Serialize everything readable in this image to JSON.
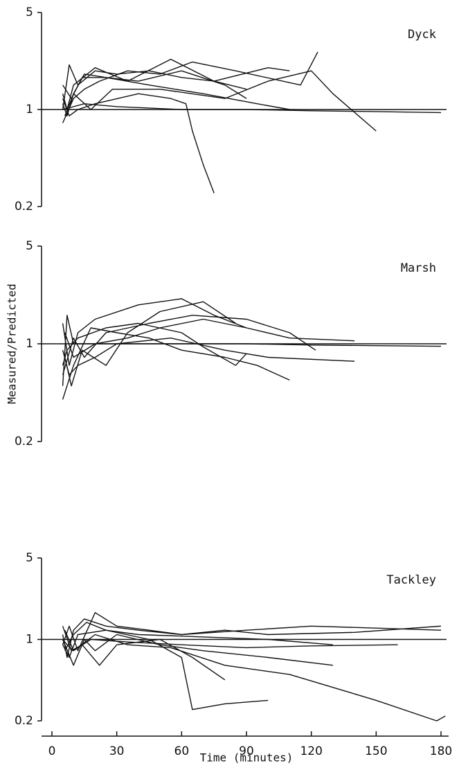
{
  "chart_data": [
    {
      "type": "line",
      "annotation": "Dyck",
      "log_y": true,
      "ylim": [
        0.2,
        5
      ],
      "yticks": [
        0.2,
        1,
        5
      ],
      "xlim": [
        0,
        180
      ],
      "hline": 1,
      "color": "#111111",
      "series": [
        {
          "x": [
            5,
            7,
            10,
            15,
            25,
            40,
            60,
            80,
            90
          ],
          "values": [
            1.1,
            0.9,
            1.3,
            1.8,
            1.7,
            1.6,
            1.9,
            1.5,
            1.2
          ]
        },
        {
          "x": [
            5,
            8,
            12,
            20,
            30,
            45,
            60,
            75,
            100,
            110
          ],
          "values": [
            1,
            2.1,
            1.5,
            1.9,
            1.8,
            1.9,
            1.7,
            1.6,
            2.0,
            1.9
          ]
        },
        {
          "x": [
            5,
            10,
            15,
            22,
            35,
            50,
            65,
            85,
            115,
            123
          ],
          "values": [
            0.8,
            1.2,
            1.4,
            1.6,
            1.9,
            1.8,
            2.2,
            1.9,
            1.5,
            2.6
          ]
        },
        {
          "x": [
            5,
            8,
            12,
            20,
            40,
            55,
            62,
            65,
            70,
            75
          ],
          "values": [
            1.2,
            0.9,
            1.0,
            1.1,
            1.3,
            1.2,
            1.1,
            0.7,
            0.4,
            0.25
          ]
        },
        {
          "x": [
            5,
            9,
            14,
            25,
            45,
            70,
            95,
            110
          ],
          "values": [
            1.5,
            1.2,
            1.7,
            1.7,
            1.5,
            1.3,
            1.1,
            1.0
          ]
        },
        {
          "x": [
            6,
            10,
            18,
            28,
            50,
            80,
            100,
            120,
            130,
            150
          ],
          "values": [
            0.9,
            1.3,
            1.0,
            1.4,
            1.4,
            1.2,
            1.6,
            1.9,
            1.3,
            0.7
          ]
        },
        {
          "x": [
            5,
            15,
            30,
            60,
            90,
            120,
            140,
            180
          ],
          "values": [
            1.0,
            1.1,
            1.05,
            1.0,
            1.0,
            0.98,
            0.97,
            0.95
          ]
        },
        {
          "x": [
            5,
            7,
            10,
            20,
            35,
            55,
            75,
            90
          ],
          "values": [
            1.3,
            1.0,
            1.5,
            2.0,
            1.6,
            2.3,
            1.6,
            1.4
          ]
        }
      ]
    },
    {
      "type": "line",
      "annotation": "Marsh",
      "ylabel": "Measured/Predicted",
      "log_y": true,
      "ylim": [
        0.2,
        5
      ],
      "yticks": [
        0.2,
        1,
        5
      ],
      "xlim": [
        0,
        180
      ],
      "hline": 1,
      "color": "#111111",
      "series": [
        {
          "x": [
            5,
            7,
            10,
            20,
            40,
            60,
            90,
            120,
            150,
            180
          ],
          "values": [
            0.5,
            1.6,
            1.0,
            1.0,
            1.0,
            1.0,
            1.0,
            0.98,
            0.97,
            0.96
          ]
        },
        {
          "x": [
            5,
            8,
            12,
            20,
            40,
            60,
            75,
            90
          ],
          "values": [
            1.4,
            0.7,
            1.2,
            1.5,
            1.9,
            2.1,
            1.6,
            1.3
          ]
        },
        {
          "x": [
            5,
            10,
            15,
            25,
            45,
            65,
            90,
            110,
            122
          ],
          "values": [
            0.6,
            1.1,
            0.8,
            1.2,
            1.4,
            1.6,
            1.5,
            1.2,
            0.9
          ]
        },
        {
          "x": [
            6,
            9,
            14,
            25,
            35,
            50,
            70,
            85
          ],
          "values": [
            0.8,
            0.5,
            0.9,
            0.7,
            1.2,
            1.7,
            2.0,
            1.4
          ]
        },
        {
          "x": [
            5,
            8,
            12,
            20,
            30,
            55,
            80,
            100,
            140
          ],
          "values": [
            0.9,
            0.6,
            0.7,
            0.8,
            1.0,
            1.1,
            0.9,
            0.8,
            0.75
          ]
        },
        {
          "x": [
            5,
            10,
            18,
            30,
            45,
            60,
            80,
            95,
            110
          ],
          "values": [
            0.4,
            0.7,
            1.3,
            1.2,
            1.1,
            0.9,
            0.8,
            0.7,
            0.55
          ]
        },
        {
          "x": [
            5,
            7,
            12,
            25,
            40,
            60,
            70,
            85,
            90
          ],
          "values": [
            0.7,
            0.9,
            1.1,
            1.3,
            1.4,
            1.2,
            0.95,
            0.7,
            0.85
          ]
        },
        {
          "x": [
            6,
            10,
            20,
            35,
            50,
            70,
            90,
            110,
            140
          ],
          "values": [
            1.2,
            0.8,
            1.0,
            1.1,
            1.3,
            1.5,
            1.3,
            1.1,
            1.05
          ]
        }
      ]
    },
    {
      "type": "line",
      "annotation": "Tackley",
      "xlabel": "Time (minutes)",
      "log_y": true,
      "ylim": [
        0.2,
        5
      ],
      "yticks": [
        0.2,
        1,
        5
      ],
      "xlim": [
        0,
        180
      ],
      "xticks": [
        0,
        30,
        60,
        90,
        120,
        150,
        180
      ],
      "hline": 1,
      "color": "#111111",
      "series": [
        {
          "x": [
            5,
            7,
            10,
            15,
            25,
            40,
            60,
            90,
            120,
            150,
            180
          ],
          "values": [
            1.1,
            0.7,
            1.2,
            1.5,
            1.3,
            1.2,
            1.1,
            1.2,
            1.3,
            1.25,
            1.2
          ]
        },
        {
          "x": [
            5,
            8,
            12,
            20,
            30,
            45,
            60,
            80,
            100,
            140,
            180
          ],
          "values": [
            0.9,
            1.3,
            0.8,
            1.7,
            1.3,
            1.2,
            1.1,
            1.2,
            1.1,
            1.15,
            1.3
          ]
        },
        {
          "x": [
            5,
            10,
            15,
            20,
            30,
            50,
            70,
            100,
            130
          ],
          "values": [
            1.0,
            0.6,
            1.0,
            0.8,
            1.1,
            0.9,
            0.8,
            0.7,
            0.6
          ]
        },
        {
          "x": [
            6,
            10,
            20,
            35,
            55,
            80,
            110,
            150,
            178,
            182
          ],
          "values": [
            1.2,
            0.8,
            1.1,
            0.9,
            0.85,
            0.6,
            0.5,
            0.3,
            0.2,
            0.22
          ]
        },
        {
          "x": [
            5,
            8,
            12,
            25,
            45,
            60,
            65,
            80,
            100
          ],
          "values": [
            0.9,
            0.7,
            1.1,
            1.2,
            1.0,
            0.7,
            0.25,
            0.28,
            0.3
          ]
        },
        {
          "x": [
            5,
            9,
            14,
            22,
            30,
            50,
            65,
            80
          ],
          "values": [
            1.3,
            0.8,
            0.9,
            0.6,
            0.9,
            1.0,
            0.7,
            0.45
          ]
        },
        {
          "x": [
            5,
            7,
            10,
            18,
            35,
            60,
            90,
            120,
            160
          ],
          "values": [
            1.0,
            0.9,
            0.8,
            1.0,
            0.95,
            0.9,
            0.85,
            0.88,
            0.9
          ]
        },
        {
          "x": [
            6,
            10,
            16,
            25,
            40,
            70,
            100,
            130
          ],
          "values": [
            0.8,
            1.1,
            1.4,
            1.2,
            1.1,
            1.05,
            1.0,
            0.9
          ]
        }
      ]
    }
  ]
}
